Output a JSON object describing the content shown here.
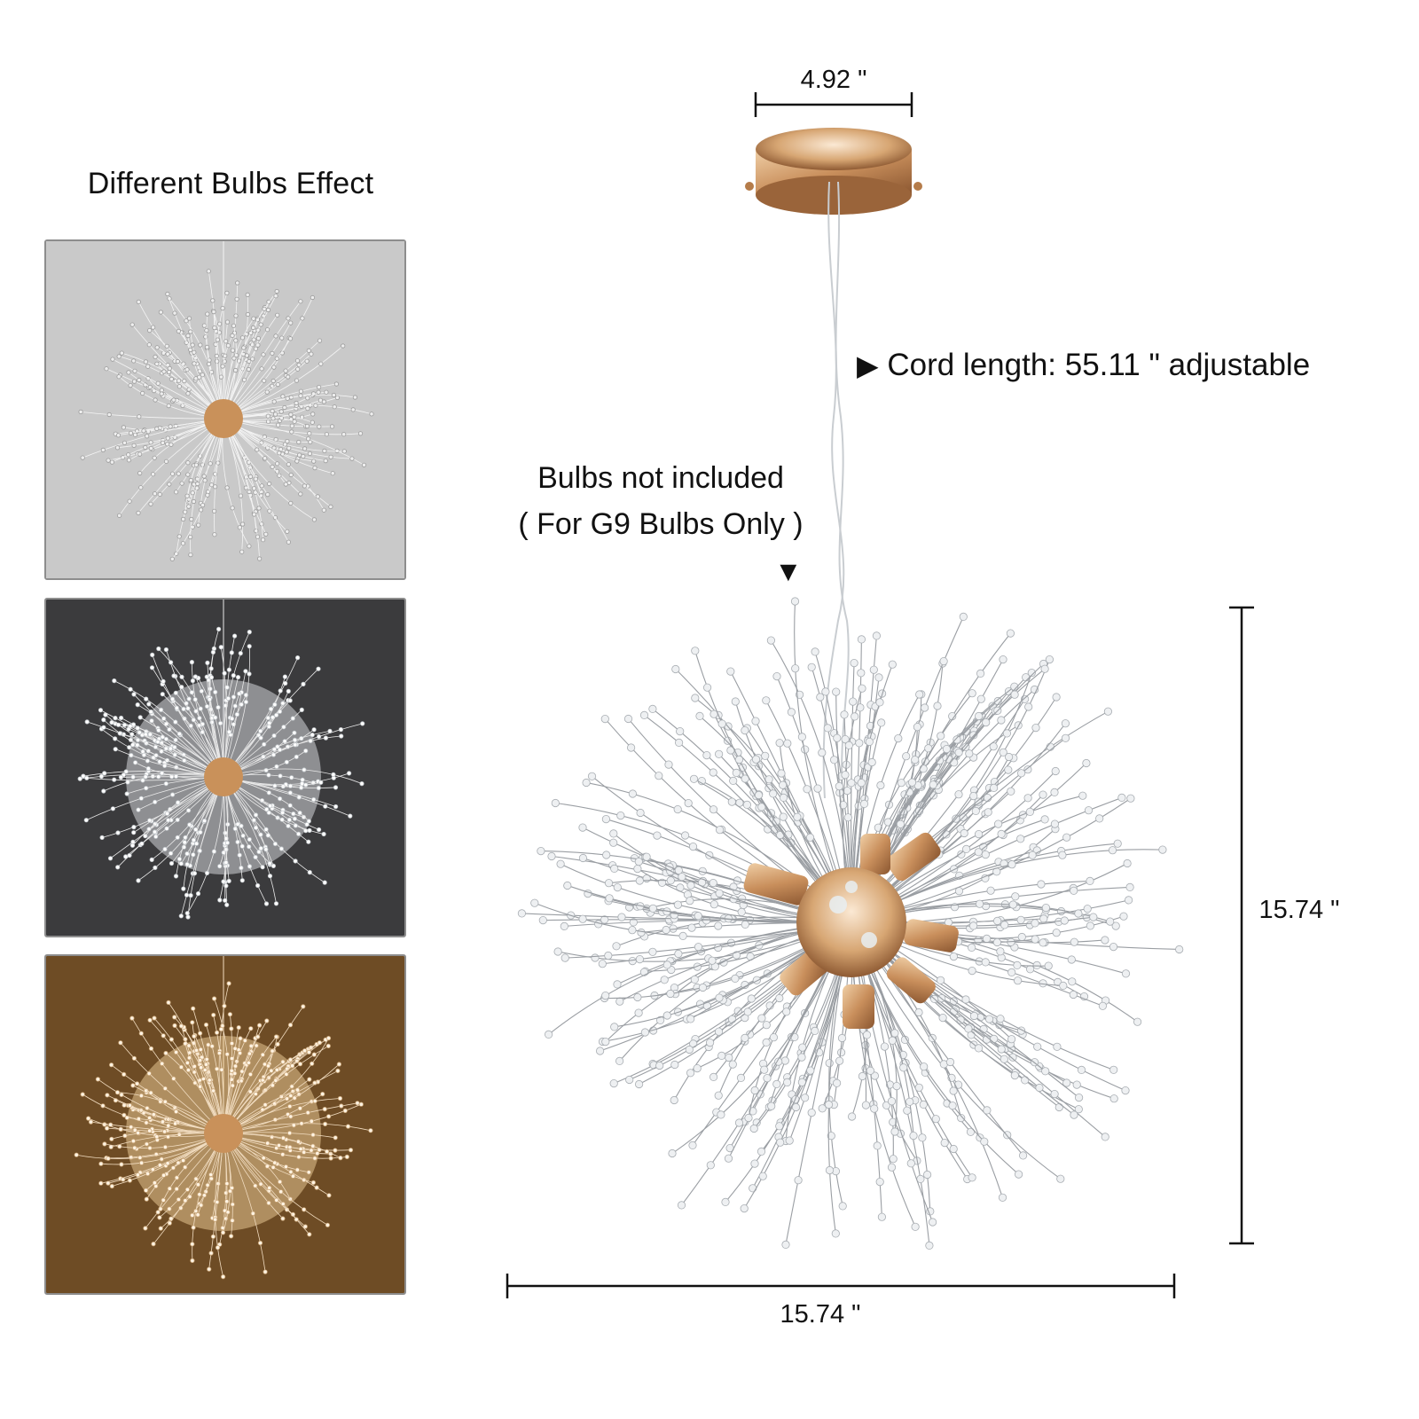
{
  "left_panel": {
    "title": "Different Bulbs Effect",
    "thumbnails": [
      {
        "label": "no-light",
        "bg": "#c9c9c9"
      },
      {
        "label": "cool-white-light",
        "bg": "#3a3a3a"
      },
      {
        "label": "warm-light",
        "bg": "#6b4a23"
      }
    ]
  },
  "dimensions": {
    "canopy_width": "4.92 \"",
    "height": "15.74 \"",
    "width": "15.74 \""
  },
  "annotations": {
    "cord_marker": "▶",
    "cord_text": "Cord length: 55.11 \" adjustable",
    "bulbs_line1": "Bulbs not included",
    "bulbs_line2": "( For G9 Bulbs Only )",
    "bulbs_marker": "▼"
  },
  "colors": {
    "gold": "#c9915a",
    "crystal": "#b9bec4",
    "text": "#111111"
  }
}
